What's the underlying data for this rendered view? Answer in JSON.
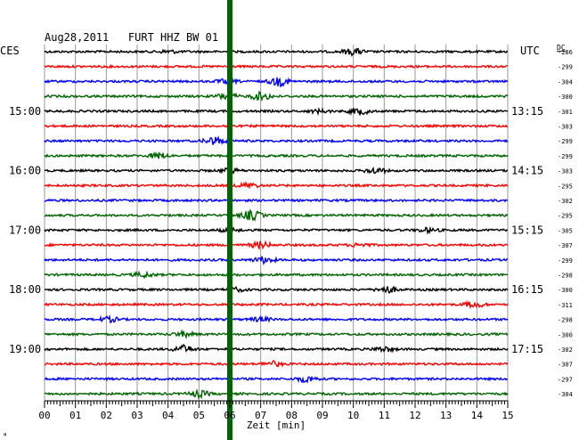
{
  "chart_data": {
    "type": "line",
    "title": "Aug28,2011   FURT HHZ BW 01",
    "left_timezone": "CES",
    "right_timezone": "UTC",
    "dc_label": "DC",
    "xlabel": "Zeit [min]",
    "x_ticks": [
      "00",
      "01",
      "02",
      "03",
      "04",
      "05",
      "06",
      "07",
      "08",
      "09",
      "10",
      "11",
      "12",
      "13",
      "14",
      "15"
    ],
    "xlim": [
      0,
      15
    ],
    "left_hour_labels": [
      "15:00",
      "16:00",
      "17:00",
      "18:00",
      "19:00"
    ],
    "right_hour_labels": [
      "13:15",
      "14:15",
      "15:15",
      "16:15",
      "17:15"
    ],
    "grid": true,
    "trace_colors": [
      "#000000",
      "#ff0000",
      "#0000ff",
      "#006400"
    ],
    "marker_color": "#006400",
    "marker_minute": 6,
    "footer_glyph": "̻",
    "traces": [
      {
        "dc": "-286",
        "events": [
          [
            10,
            1.6
          ],
          [
            4,
            0.7
          ]
        ]
      },
      {
        "dc": "-299",
        "events": []
      },
      {
        "dc": "-304",
        "events": [
          [
            7.6,
            2.2
          ],
          [
            5.9,
            1.0
          ]
        ]
      },
      {
        "dc": "-300",
        "events": [
          [
            7,
            2.0
          ],
          [
            5.9,
            1.6
          ]
        ]
      },
      {
        "dc": "-301",
        "events": [
          [
            10.2,
            1.6
          ],
          [
            8.9,
            0.8
          ]
        ]
      },
      {
        "dc": "-303",
        "events": []
      },
      {
        "dc": "-299",
        "events": [
          [
            5.5,
            2.0
          ]
        ]
      },
      {
        "dc": "-299",
        "events": [
          [
            3.7,
            1.4
          ]
        ]
      },
      {
        "dc": "-303",
        "events": [
          [
            10.7,
            1.4
          ],
          [
            6,
            1.0
          ]
        ]
      },
      {
        "dc": "-295",
        "events": [
          [
            6.6,
            1.2
          ]
        ]
      },
      {
        "dc": "-302",
        "events": []
      },
      {
        "dc": "-295",
        "events": [
          [
            6.7,
            2.4
          ]
        ]
      },
      {
        "dc": "-305",
        "events": [
          [
            12.4,
            1.0
          ],
          [
            6,
            0.8
          ]
        ]
      },
      {
        "dc": "-307",
        "events": [
          [
            7.0,
            1.6
          ],
          [
            10.2,
            0.9
          ]
        ]
      },
      {
        "dc": "-299",
        "events": [
          [
            7.1,
            1.6
          ]
        ]
      },
      {
        "dc": "-298",
        "events": [
          [
            3.2,
            1.2
          ]
        ]
      },
      {
        "dc": "-300",
        "events": [
          [
            11.1,
            1.6
          ],
          [
            6.2,
            0.8
          ]
        ]
      },
      {
        "dc": "-311",
        "events": [
          [
            13.9,
            1.4
          ]
        ]
      },
      {
        "dc": "-298",
        "events": [
          [
            2.1,
            1.2
          ],
          [
            7,
            1.0
          ]
        ]
      },
      {
        "dc": "-300",
        "events": [
          [
            4.5,
            1.2
          ]
        ]
      },
      {
        "dc": "-302",
        "events": [
          [
            4.5,
            1.8
          ],
          [
            11,
            1.2
          ]
        ]
      },
      {
        "dc": "-307",
        "events": [
          [
            7.4,
            1.2
          ]
        ]
      },
      {
        "dc": "-297",
        "events": [
          [
            8.5,
            1.6
          ]
        ]
      },
      {
        "dc": "-304",
        "events": [
          [
            5.0,
            1.6
          ]
        ]
      }
    ]
  }
}
